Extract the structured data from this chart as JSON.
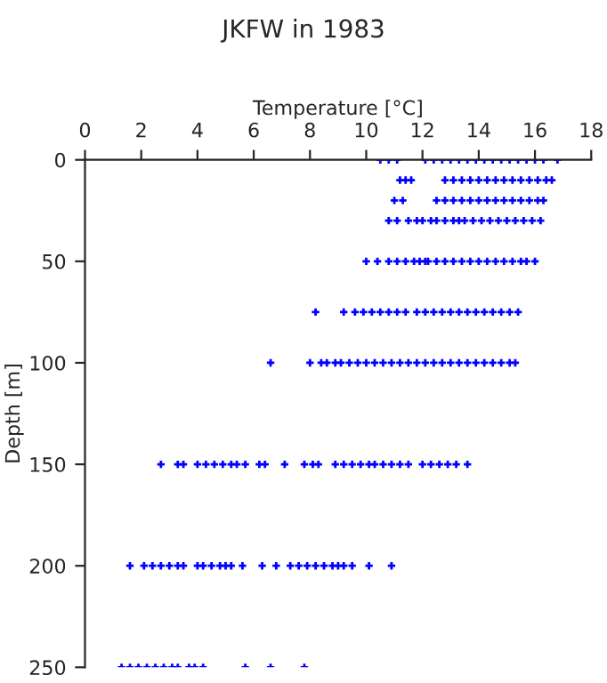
{
  "chart_data": {
    "type": "scatter",
    "title": "JKFW in 1983",
    "xlabel": "Temperature [°C]",
    "ylabel": "Depth [m]",
    "xlim": [
      0,
      18
    ],
    "xticks": [
      0,
      2,
      4,
      6,
      8,
      10,
      12,
      14,
      16,
      18
    ],
    "ylim": [
      250,
      0
    ],
    "yticks": [
      0,
      50,
      100,
      150,
      200,
      250
    ],
    "grid": false,
    "marker": "cross",
    "series": [
      {
        "color": "#0000ff",
        "x": [
          10.5,
          10.8,
          11.1,
          12.1,
          12.4,
          12.7,
          13.0,
          13.3,
          13.6,
          13.9,
          14.2,
          14.5,
          14.8,
          15.1,
          15.4,
          15.7,
          16.0,
          16.3,
          16.8
        ],
        "values": [
          0,
          0,
          0,
          0,
          0,
          0,
          0,
          0,
          0,
          0,
          0,
          0,
          0,
          0,
          0,
          0,
          0,
          0,
          0
        ]
      },
      {
        "color": "#0000ff",
        "x": [
          11.2,
          11.4,
          11.6,
          12.8,
          13.1,
          13.4,
          13.7,
          14.0,
          14.3,
          14.6,
          14.9,
          15.2,
          15.5,
          15.8,
          16.1,
          16.4,
          16.6
        ],
        "values": [
          10,
          10,
          10,
          10,
          10,
          10,
          10,
          10,
          10,
          10,
          10,
          10,
          10,
          10,
          10,
          10,
          10
        ]
      },
      {
        "color": "#0000ff",
        "x": [
          11.0,
          11.3,
          12.5,
          12.8,
          13.1,
          13.4,
          13.7,
          14.0,
          14.3,
          14.6,
          14.9,
          15.2,
          15.5,
          15.8,
          16.1,
          16.3
        ],
        "values": [
          20,
          20,
          20,
          20,
          20,
          20,
          20,
          20,
          20,
          20,
          20,
          20,
          20,
          20,
          20,
          20
        ]
      },
      {
        "color": "#0000ff",
        "x": [
          10.8,
          11.1,
          11.5,
          11.8,
          12.0,
          12.3,
          12.5,
          12.8,
          13.1,
          13.3,
          13.5,
          13.8,
          14.1,
          14.4,
          14.7,
          15.0,
          15.3,
          15.6,
          15.9,
          16.2
        ],
        "values": [
          30,
          30,
          30,
          30,
          30,
          30,
          30,
          30,
          30,
          30,
          30,
          30,
          30,
          30,
          30,
          30,
          30,
          30,
          30,
          30
        ]
      },
      {
        "color": "#0000ff",
        "x": [
          10.0,
          10.4,
          10.8,
          11.1,
          11.4,
          11.7,
          11.9,
          12.1,
          12.2,
          12.5,
          12.8,
          13.1,
          13.4,
          13.7,
          14.0,
          14.3,
          14.6,
          14.9,
          15.2,
          15.5,
          15.7,
          16.0
        ],
        "values": [
          50,
          50,
          50,
          50,
          50,
          50,
          50,
          50,
          50,
          50,
          50,
          50,
          50,
          50,
          50,
          50,
          50,
          50,
          50,
          50,
          50,
          50
        ]
      },
      {
        "color": "#0000ff",
        "x": [
          8.2,
          9.2,
          9.6,
          9.9,
          10.2,
          10.5,
          10.8,
          11.1,
          11.4,
          11.8,
          12.1,
          12.4,
          12.7,
          13.0,
          13.3,
          13.6,
          13.9,
          14.2,
          14.5,
          14.8,
          15.1,
          15.4
        ],
        "values": [
          75,
          75,
          75,
          75,
          75,
          75,
          75,
          75,
          75,
          75,
          75,
          75,
          75,
          75,
          75,
          75,
          75,
          75,
          75,
          75,
          75,
          75
        ]
      },
      {
        "color": "#0000ff",
        "x": [
          6.6,
          8.0,
          8.4,
          8.6,
          8.9,
          9.1,
          9.4,
          9.7,
          10.0,
          10.3,
          10.6,
          10.9,
          11.2,
          11.5,
          11.8,
          12.1,
          12.4,
          12.7,
          13.0,
          13.3,
          13.6,
          13.9,
          14.2,
          14.5,
          14.8,
          15.1,
          15.3
        ],
        "values": [
          100,
          100,
          100,
          100,
          100,
          100,
          100,
          100,
          100,
          100,
          100,
          100,
          100,
          100,
          100,
          100,
          100,
          100,
          100,
          100,
          100,
          100,
          100,
          100,
          100,
          100,
          100
        ]
      },
      {
        "color": "#0000ff",
        "x": [
          2.7,
          3.3,
          3.5,
          4.0,
          4.3,
          4.6,
          4.9,
          5.2,
          5.4,
          5.7,
          6.2,
          6.4,
          7.1,
          7.8,
          8.1,
          8.3,
          8.9,
          9.2,
          9.5,
          9.8,
          10.1,
          10.3,
          10.6,
          10.9,
          11.2,
          11.5,
          12.0,
          12.3,
          12.6,
          12.9,
          13.2,
          13.6
        ],
        "values": [
          150,
          150,
          150,
          150,
          150,
          150,
          150,
          150,
          150,
          150,
          150,
          150,
          150,
          150,
          150,
          150,
          150,
          150,
          150,
          150,
          150,
          150,
          150,
          150,
          150,
          150,
          150,
          150,
          150,
          150,
          150,
          150
        ]
      },
      {
        "color": "#0000ff",
        "x": [
          1.6,
          2.1,
          2.4,
          2.7,
          3.0,
          3.3,
          3.5,
          4.0,
          4.2,
          4.5,
          4.8,
          5.0,
          5.2,
          5.6,
          6.3,
          6.8,
          7.3,
          7.6,
          7.9,
          8.2,
          8.5,
          8.8,
          9.0,
          9.2,
          9.5,
          10.1,
          10.9
        ],
        "values": [
          200,
          200,
          200,
          200,
          200,
          200,
          200,
          200,
          200,
          200,
          200,
          200,
          200,
          200,
          200,
          200,
          200,
          200,
          200,
          200,
          200,
          200,
          200,
          200,
          200,
          200,
          200
        ]
      },
      {
        "color": "#0000ff",
        "x": [
          1.3,
          1.6,
          1.9,
          2.2,
          2.5,
          2.8,
          3.1,
          3.3,
          3.7,
          3.9,
          4.2,
          5.7,
          6.6,
          7.8
        ],
        "values": [
          250,
          250,
          250,
          250,
          250,
          250,
          250,
          250,
          250,
          250,
          250,
          250,
          250,
          250
        ]
      }
    ]
  }
}
